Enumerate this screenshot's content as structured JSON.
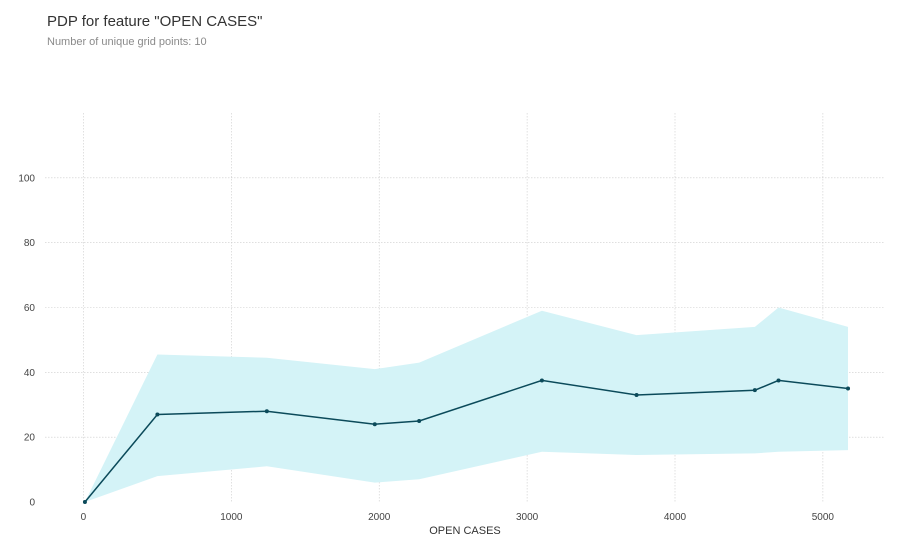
{
  "title": "PDP for feature \"OPEN CASES\"",
  "subtitle": "Number of unique grid points: 10",
  "colors": {
    "line": "#0b4a5a",
    "band": "#d4f3f7",
    "grid": "#cccccc"
  },
  "chart_data": {
    "type": "line",
    "xlabel": "OPEN CASES",
    "ylabel": "",
    "xlim": [
      -260,
      5420
    ],
    "ylim": [
      0,
      120
    ],
    "xticks": [
      0,
      1000,
      2000,
      3000,
      4000,
      5000
    ],
    "yticks": [
      0,
      20,
      40,
      60,
      80,
      100
    ],
    "grid": true,
    "series": [
      {
        "x": [
          10,
          500,
          1240,
          1970,
          2270,
          3100,
          3740,
          4540,
          4700,
          5170
        ],
        "y": [
          0,
          27,
          28,
          24,
          25,
          37.5,
          33,
          34.5,
          37.5,
          35
        ],
        "upper": [
          0,
          45.5,
          44.5,
          41,
          43,
          59,
          51.5,
          54,
          60,
          54
        ],
        "lower": [
          0,
          8,
          11,
          6,
          7,
          15.5,
          14.5,
          15,
          15.5,
          16
        ]
      }
    ]
  }
}
